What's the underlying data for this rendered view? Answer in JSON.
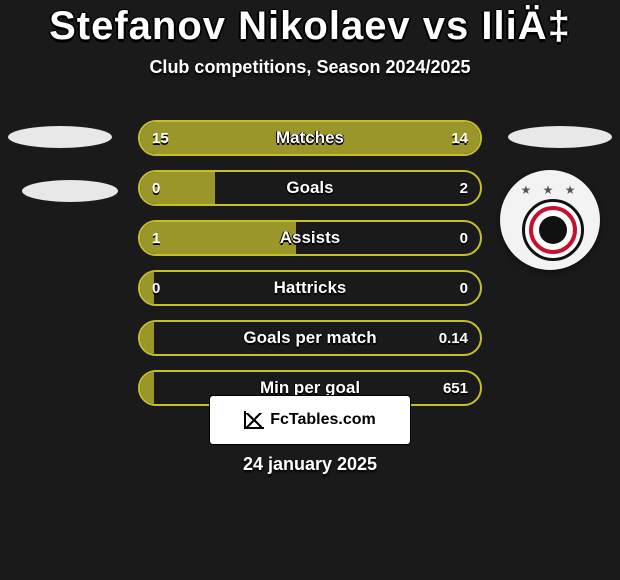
{
  "title": "Stefanov Nikolaev vs IliÄ‡",
  "subtitle": "Club competitions, Season 2024/2025",
  "footer_brand": "FcTables.com",
  "date_text": "24 january 2025",
  "colors": {
    "bar_border": "#c7bf2a",
    "bar_fill": "#9a962a",
    "background": "#1a1a1a",
    "text": "#ffffff"
  },
  "bars": [
    {
      "label": "Matches",
      "left": "15",
      "right": "14",
      "fill_pct": 100
    },
    {
      "label": "Goals",
      "left": "0",
      "right": "2",
      "fill_pct": 22
    },
    {
      "label": "Assists",
      "left": "1",
      "right": "0",
      "fill_pct": 46
    },
    {
      "label": "Hattricks",
      "left": "0",
      "right": "0",
      "fill_pct": 4
    },
    {
      "label": "Goals per match",
      "left": "",
      "right": "0.14",
      "fill_pct": 4
    },
    {
      "label": "Min per goal",
      "left": "",
      "right": "651",
      "fill_pct": 4
    }
  ]
}
